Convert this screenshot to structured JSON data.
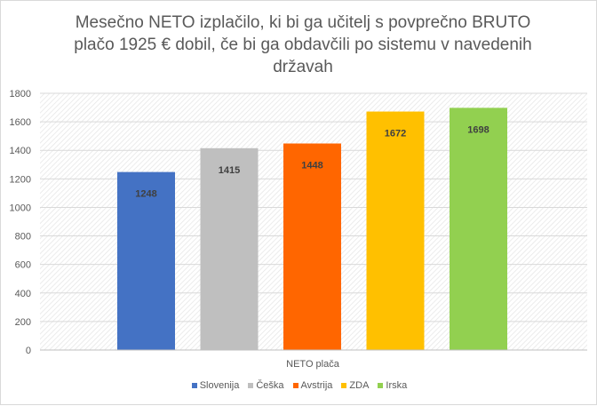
{
  "chart_data": {
    "type": "bar",
    "title": "Mesečno NETO izplačilo, ki bi ga učitelj s povprečno BRUTO plačo 1925 € dobil, če bi ga obdavčili po sistemu v navedenih državah",
    "title_lines": [
      "Mesečno NETO izplačilo, ki bi ga učitelj s povprečno BRUTO",
      "plačo 1925 € dobil, če bi ga obdavčili po sistemu v navedenih",
      "državah"
    ],
    "categories": [
      "NETO plača"
    ],
    "xlabel": "NETO plača",
    "ylabel": "",
    "ylim": [
      0,
      1800
    ],
    "yticks": [
      0,
      200,
      400,
      600,
      800,
      1000,
      1200,
      1400,
      1600,
      1800
    ],
    "grid": true,
    "legend_position": "bottom",
    "series": [
      {
        "name": "Slovenija",
        "values": [
          1248
        ],
        "color": "#4472c4"
      },
      {
        "name": "Češka",
        "values": [
          1415
        ],
        "color": "#bfbfbf"
      },
      {
        "name": "Avstrija",
        "values": [
          1448
        ],
        "color": "#ff6600"
      },
      {
        "name": "ZDA",
        "values": [
          1672
        ],
        "color": "#ffc000"
      },
      {
        "name": "Irska",
        "values": [
          1698
        ],
        "color": "#92d050"
      }
    ]
  }
}
